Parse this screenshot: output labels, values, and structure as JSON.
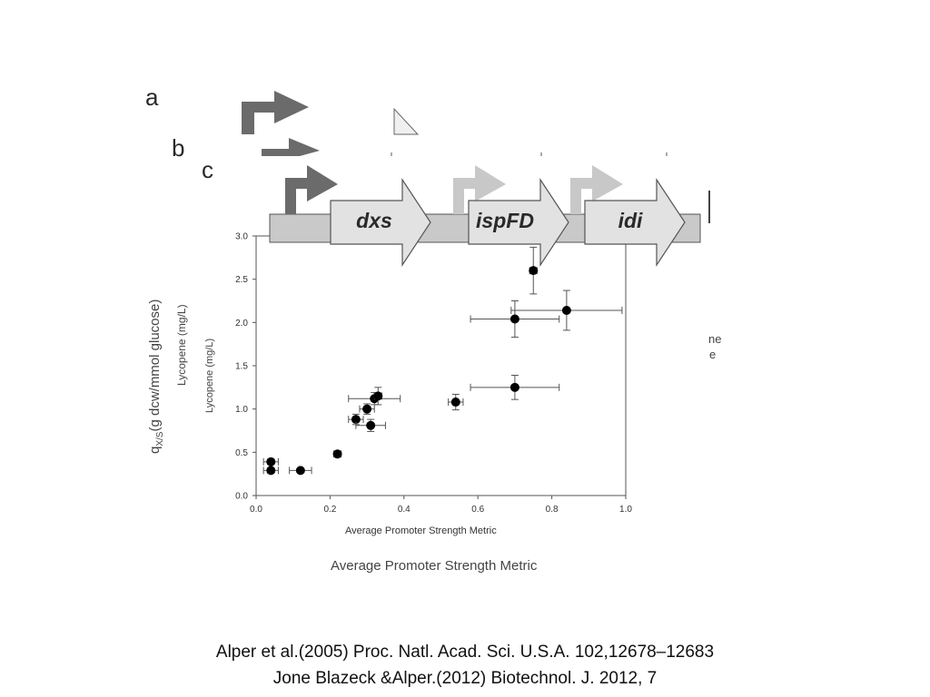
{
  "panels": {
    "a": "a",
    "b": "b",
    "c": "c"
  },
  "operon": {
    "genes": [
      "dxs",
      "ispFD",
      "idi"
    ],
    "colors": {
      "backbone": "#c9c9c9",
      "gene_fill": "#e2e2e2",
      "promoter_dark": "#6b6b6b",
      "promoter_light": "#c8c8c8",
      "outline": "#555555"
    }
  },
  "labels": {
    "outer_ylabel": "q_X/S (g dcw/mmol glucose)",
    "outer_ylabel_main": "q",
    "outer_ylabel_sub": "X/S",
    "outer_ylabel_rest": "(g dcw/mmol glucose)",
    "mid_ylabel": "Lycopene (mg/L)",
    "outer_xlabel": "Average Promoter Strength Metric",
    "legend_frag_1": "ne",
    "legend_frag_2": "e"
  },
  "chart_data": {
    "type": "scatter",
    "title": "",
    "xlabel": "Average Promoter Strength Metric",
    "ylabel": "Lycopene (mg/L)",
    "xlim": [
      0.0,
      1.0
    ],
    "ylim": [
      0.0,
      3.0
    ],
    "xticks": [
      "0.0",
      "0.2",
      "0.4",
      "0.6",
      "0.8",
      "1.0"
    ],
    "yticks": [
      "0.0",
      "0.5",
      "1.0",
      "1.5",
      "2.0",
      "2.5",
      "3.0"
    ],
    "grid": false,
    "series": [
      {
        "points": [
          {
            "x": 0.04,
            "y": 0.39,
            "xerr": 0.02,
            "yerr": 0.03
          },
          {
            "x": 0.04,
            "y": 0.29,
            "xerr": 0.02,
            "yerr": 0.03
          },
          {
            "x": 0.12,
            "y": 0.29,
            "xerr": 0.03,
            "yerr": 0.02
          },
          {
            "x": 0.22,
            "y": 0.48,
            "xerr": 0.01,
            "yerr": 0.03
          },
          {
            "x": 0.27,
            "y": 0.88,
            "xerr": 0.02,
            "yerr": 0.06
          },
          {
            "x": 0.3,
            "y": 1.0,
            "xerr": 0.02,
            "yerr": 0.06
          },
          {
            "x": 0.31,
            "y": 0.81,
            "xerr": 0.04,
            "yerr": 0.07
          },
          {
            "x": 0.32,
            "y": 1.12,
            "xerr": 0.07,
            "yerr": 0.07
          },
          {
            "x": 0.33,
            "y": 1.15,
            "xerr": 0.01,
            "yerr": 0.1
          },
          {
            "x": 0.54,
            "y": 1.08,
            "xerr": 0.02,
            "yerr": 0.09
          },
          {
            "x": 0.7,
            "y": 1.25,
            "xerr": 0.12,
            "yerr": 0.14
          },
          {
            "x": 0.7,
            "y": 2.04,
            "xerr": 0.12,
            "yerr": 0.21
          },
          {
            "x": 0.75,
            "y": 2.6,
            "xerr": 0.01,
            "yerr": 0.27
          },
          {
            "x": 0.84,
            "y": 2.14,
            "xerr": 0.15,
            "yerr": 0.23
          }
        ]
      }
    ]
  },
  "citation": {
    "line1": "Alper et al.(2005) Proc. Natl. Acad. Sci. U.S.A. 102,12678–12683",
    "line2": "Jone Blazeck &Alper.(2012) Biotechnol. J. 2012, 7"
  }
}
